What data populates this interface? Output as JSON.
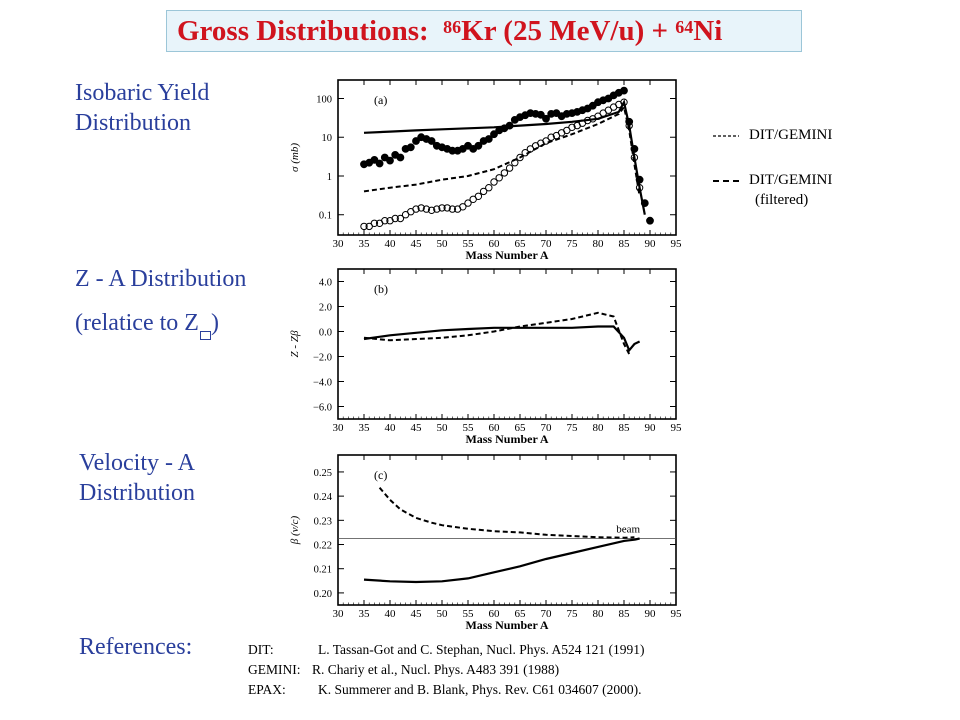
{
  "title": {
    "prefix": "Gross Distributions:  ",
    "a1": "86",
    "e1": "Kr (25 MeV/u) + ",
    "a2": "64",
    "e2": "Ni"
  },
  "labels": {
    "isobaric_line1": "Isobaric Yield",
    "isobaric_line2": "Distribution",
    "za_line1": "Z - A Distribution",
    "za_line2_pre": "(relatice to Z",
    "za_line2_post": ")",
    "vel_line1": "Velocity - A",
    "vel_line2": "Distribution",
    "references": "References:"
  },
  "legend": {
    "solid_label": "DIT/GEMINI",
    "dashed_label_line1": "DIT/GEMINI",
    "dashed_label_line2": "(filtered)"
  },
  "references": [
    {
      "key": "DIT:",
      "text": "L. Tassan-Got and C. Stephan, Nucl. Phys. A524 121 (1991)"
    },
    {
      "key": "GEMINI:",
      "text": "R. Chariy et al.,  Nucl. Phys. A483 391 (1988)"
    },
    {
      "key": "EPAX:",
      "text": "K. Summerer and B. Blank, Phys. Rev. C61 034607  (2000)."
    }
  ],
  "chart_data": [
    {
      "type": "scatter",
      "panel": "(a)",
      "xlabel": "Mass Number A",
      "ylabel": "σ (mb)",
      "xlim": [
        30,
        95
      ],
      "x_ticks": [
        30,
        35,
        40,
        45,
        50,
        55,
        60,
        65,
        70,
        75,
        80,
        85,
        90,
        95
      ],
      "ylim": [
        0.03,
        300
      ],
      "log_y": true,
      "y_ticks": [
        {
          "value": 0.1,
          "label": "0.1"
        },
        {
          "value": 1,
          "label": "1"
        },
        {
          "value": 10,
          "label": "10"
        },
        {
          "value": 100,
          "label": "100"
        }
      ],
      "series": [
        {
          "style": "filled_points",
          "x": [
            35,
            36,
            37,
            38,
            39,
            40,
            41,
            42,
            43,
            44,
            45,
            46,
            47,
            48,
            49,
            50,
            51,
            52,
            53,
            54,
            55,
            56,
            57,
            58,
            59,
            60,
            61,
            62,
            63,
            64,
            65,
            66,
            67,
            68,
            69,
            70,
            71,
            72,
            73,
            74,
            75,
            76,
            77,
            78,
            79,
            80,
            81,
            82,
            83,
            84,
            85,
            86,
            87,
            88,
            89,
            90
          ],
          "y": [
            2.0,
            2.2,
            2.6,
            2.1,
            3.0,
            2.5,
            3.5,
            3.0,
            5.0,
            5.5,
            8,
            10,
            9,
            8,
            6,
            5.5,
            5,
            4.5,
            4.5,
            5,
            6,
            5,
            6,
            8,
            9,
            12,
            15,
            17,
            20,
            28,
            33,
            37,
            42,
            40,
            38,
            30,
            40,
            42,
            35,
            40,
            42,
            45,
            50,
            55,
            65,
            80,
            90,
            100,
            120,
            140,
            160,
            25,
            5,
            0.8,
            0.2,
            0.07
          ]
        },
        {
          "style": "open_points",
          "x": [
            35,
            36,
            37,
            38,
            39,
            40,
            41,
            42,
            43,
            44,
            45,
            46,
            47,
            48,
            49,
            50,
            51,
            52,
            53,
            54,
            55,
            56,
            57,
            58,
            59,
            60,
            61,
            62,
            63,
            64,
            65,
            66,
            67,
            68,
            69,
            70,
            71,
            72,
            73,
            74,
            75,
            76,
            77,
            78,
            79,
            80,
            81,
            82,
            83,
            84,
            85,
            86,
            87,
            88
          ],
          "y": [
            0.05,
            0.05,
            0.06,
            0.06,
            0.07,
            0.07,
            0.08,
            0.08,
            0.1,
            0.12,
            0.14,
            0.15,
            0.14,
            0.13,
            0.14,
            0.15,
            0.15,
            0.14,
            0.14,
            0.16,
            0.2,
            0.25,
            0.3,
            0.4,
            0.5,
            0.7,
            0.9,
            1.2,
            1.6,
            2.2,
            3,
            4,
            5,
            6,
            7,
            8,
            10,
            11,
            13,
            15,
            18,
            20,
            23,
            27,
            30,
            35,
            42,
            50,
            60,
            70,
            80,
            20,
            3,
            0.5
          ]
        },
        {
          "style": "solid_line",
          "name": "DIT/GEMINI",
          "x": [
            35,
            40,
            45,
            50,
            55,
            60,
            65,
            70,
            75,
            80,
            84,
            85,
            86,
            87,
            88,
            89
          ],
          "y": [
            13,
            14,
            15,
            16,
            17,
            18,
            20,
            22,
            25,
            30,
            45,
            80,
            20,
            3,
            0.5,
            0.1
          ]
        },
        {
          "style": "dashed_line",
          "name": "DIT/GEMINI (filtered)",
          "x": [
            35,
            40,
            45,
            50,
            55,
            60,
            65,
            70,
            75,
            80,
            84,
            85,
            86,
            87,
            88
          ],
          "y": [
            0.4,
            0.5,
            0.6,
            0.8,
            1.0,
            1.5,
            3,
            7,
            12,
            22,
            40,
            60,
            15,
            2,
            0.3
          ]
        }
      ]
    },
    {
      "type": "line",
      "panel": "(b)",
      "xlabel": "Mass Number A",
      "ylabel": "Z - Zβ",
      "xlim": [
        30,
        95
      ],
      "x_ticks": [
        30,
        35,
        40,
        45,
        50,
        55,
        60,
        65,
        70,
        75,
        80,
        85,
        90,
        95
      ],
      "ylim": [
        -7,
        5
      ],
      "y_ticks": [
        {
          "value": 4,
          "label": "4.0"
        },
        {
          "value": 2,
          "label": "2.0"
        },
        {
          "value": 0,
          "label": "0.0"
        },
        {
          "value": -2,
          "label": "−2.0"
        },
        {
          "value": -4,
          "label": "−4.0"
        },
        {
          "value": -6,
          "label": "−6.0"
        }
      ],
      "series": [
        {
          "style": "solid_line",
          "name": "DIT/GEMINI",
          "x": [
            35,
            40,
            45,
            50,
            55,
            60,
            65,
            70,
            75,
            80,
            83,
            85,
            86,
            87,
            88
          ],
          "y": [
            -0.6,
            -0.3,
            -0.1,
            0.1,
            0.2,
            0.3,
            0.3,
            0.3,
            0.3,
            0.4,
            0.4,
            -0.5,
            -1.5,
            -1.0,
            -0.8
          ]
        },
        {
          "style": "dashed_line",
          "name": "DIT/GEMINI (filtered)",
          "x": [
            35,
            40,
            45,
            50,
            55,
            60,
            65,
            70,
            75,
            80,
            83,
            85,
            86
          ],
          "y": [
            -0.5,
            -0.7,
            -0.6,
            -0.5,
            -0.3,
            0.0,
            0.4,
            0.7,
            1.0,
            1.5,
            1.2,
            -1.0,
            -1.8
          ]
        }
      ]
    },
    {
      "type": "line",
      "panel": "(c)",
      "xlabel": "Mass Number A",
      "ylabel": "β (v/c)",
      "xlim": [
        30,
        95
      ],
      "x_ticks": [
        30,
        35,
        40,
        45,
        50,
        55,
        60,
        65,
        70,
        75,
        80,
        85,
        90,
        95
      ],
      "ylim": [
        0.195,
        0.257
      ],
      "y_ticks": [
        {
          "value": 0.2,
          "label": "0.20"
        },
        {
          "value": 0.21,
          "label": "0.21"
        },
        {
          "value": 0.22,
          "label": "0.22"
        },
        {
          "value": 0.23,
          "label": "0.23"
        },
        {
          "value": 0.24,
          "label": "0.24"
        },
        {
          "value": 0.25,
          "label": "0.25"
        }
      ],
      "beam_label": "beam",
      "beam_value": 0.2225,
      "series": [
        {
          "style": "solid_line",
          "name": "DIT/GEMINI",
          "x": [
            35,
            40,
            45,
            50,
            55,
            60,
            65,
            70,
            75,
            80,
            85,
            87,
            88
          ],
          "y": [
            0.2055,
            0.2048,
            0.2045,
            0.2048,
            0.206,
            0.2085,
            0.211,
            0.214,
            0.2165,
            0.219,
            0.2215,
            0.222,
            0.2225
          ]
        },
        {
          "style": "dashed_line",
          "name": "DIT/GEMINI (filtered)",
          "x": [
            38,
            40,
            42,
            45,
            48,
            50,
            55,
            60,
            65,
            70,
            75,
            80,
            85,
            87
          ],
          "y": [
            0.2435,
            0.2385,
            0.2345,
            0.231,
            0.229,
            0.228,
            0.2265,
            0.2255,
            0.225,
            0.224,
            0.2235,
            0.223,
            0.2228,
            0.223
          ]
        }
      ]
    }
  ]
}
